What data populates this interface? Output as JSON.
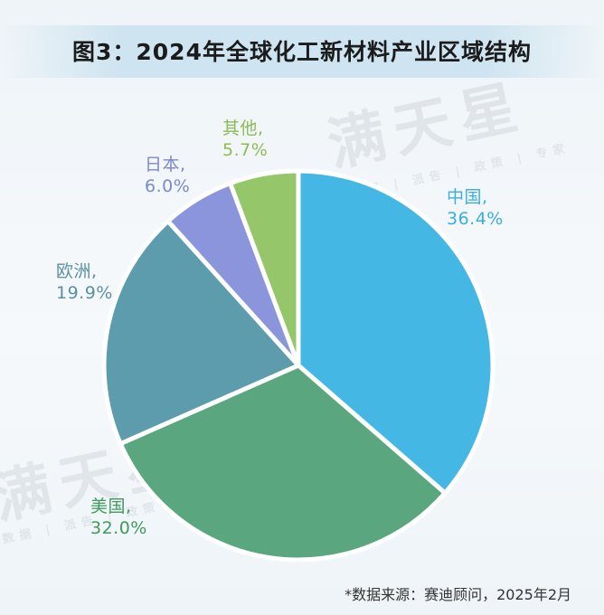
{
  "title": "图3：2024年全球化工新材料产业区域结构",
  "source": "*数据来源：赛迪顾问，2025年2月",
  "watermark": {
    "brand": "满天星",
    "tagline": "数据 | 派告 | 政策 | 专家"
  },
  "chart_data": {
    "type": "pie",
    "title": "图3：2024年全球化工新材料产业区域结构",
    "slices": [
      {
        "name": "中国,",
        "value": 36.4,
        "label": "36.4%",
        "color": "#45b7e5"
      },
      {
        "name": "美国,",
        "value": 32.0,
        "label": "32.0%",
        "color": "#5aa67e"
      },
      {
        "name": "欧洲,",
        "value": 19.9,
        "label": "19.9%",
        "color": "#5c9cad"
      },
      {
        "name": "日本,",
        "value": 6.0,
        "label": "6.0%",
        "color": "#8b95dc"
      },
      {
        "name": "其他,",
        "value": 5.7,
        "label": "5.7%",
        "color": "#96c66a"
      }
    ],
    "label_colors": [
      "#3aaee0",
      "#3f9a5c",
      "#5b8fa0",
      "#7d88cc",
      "#8cbc54"
    ],
    "start_angle": "12 o'clock",
    "direction": "clockwise"
  }
}
